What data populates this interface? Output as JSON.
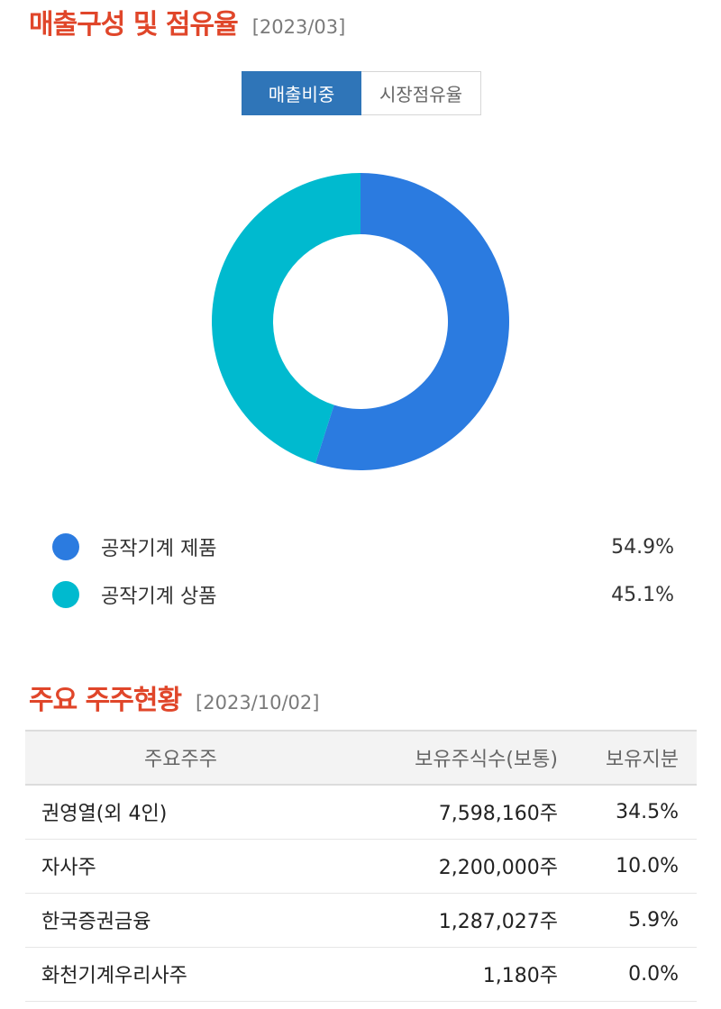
{
  "sales": {
    "title": "매출구성 및 점유율",
    "date": "[2023/03]",
    "tabs": [
      {
        "label": "매출비중",
        "active": true
      },
      {
        "label": "시장점유율",
        "active": false
      }
    ],
    "legend": [
      {
        "label": "공작기계 제품",
        "value": "54.9%",
        "color": "#2b7be0"
      },
      {
        "label": "공작기계 상품",
        "value": "45.1%",
        "color": "#00bacf"
      }
    ]
  },
  "chart_data": {
    "type": "pie",
    "variant": "donut",
    "title": "매출구성 및 점유율 [2023/03]",
    "categories": [
      "공작기계 제품",
      "공작기계 상품"
    ],
    "values": [
      54.9,
      45.1
    ],
    "colors": [
      "#2b7be0",
      "#00bacf"
    ],
    "unit": "%",
    "legend_position": "bottom"
  },
  "shareholders": {
    "title": "주요 주주현황",
    "date": "[2023/10/02]",
    "headers": [
      "주요주주",
      "보유주식수(보통)",
      "보유지분"
    ],
    "rows": [
      {
        "name": "권영열(외 4인)",
        "shares": "7,598,160주",
        "stake": "34.5%"
      },
      {
        "name": "자사주",
        "shares": "2,200,000주",
        "stake": "10.0%"
      },
      {
        "name": "한국증권금융",
        "shares": "1,287,027주",
        "stake": "5.9%"
      },
      {
        "name": "화천기계우리사주",
        "shares": "1,180주",
        "stake": "0.0%"
      }
    ]
  }
}
